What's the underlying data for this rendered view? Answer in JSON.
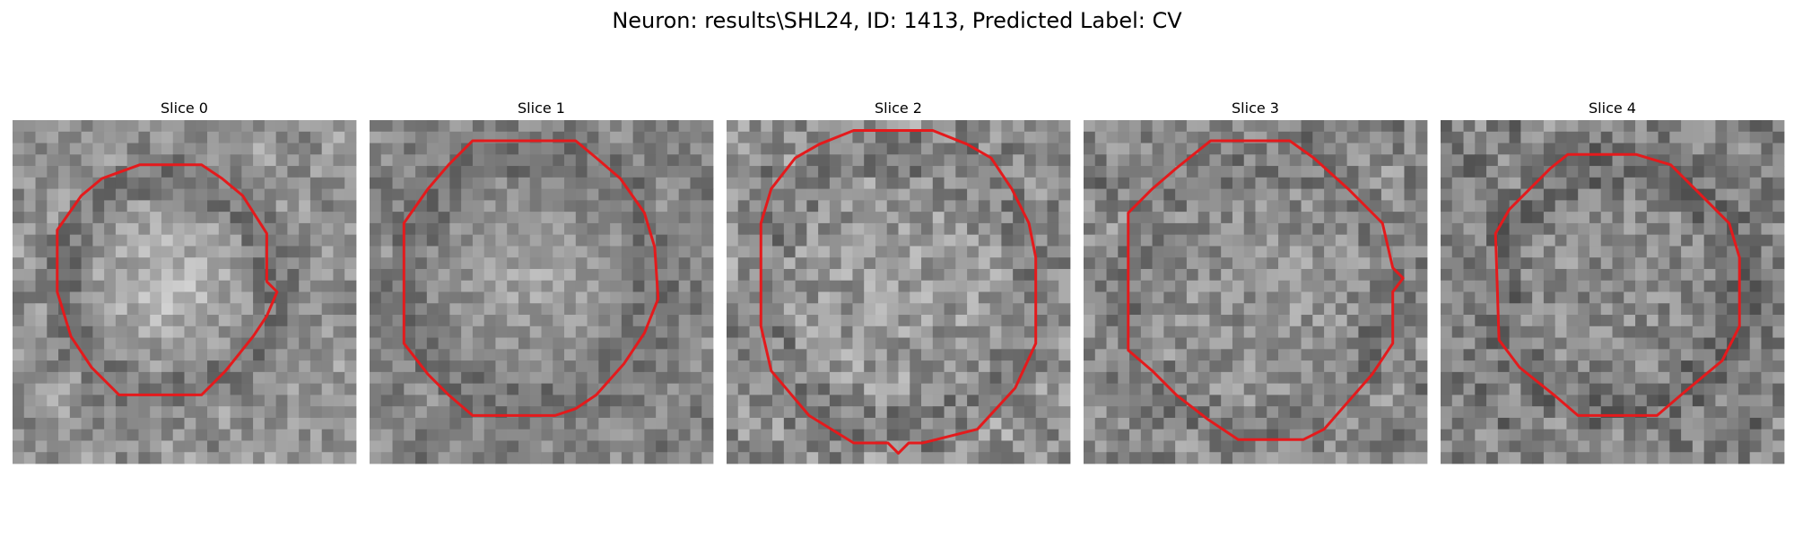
{
  "figure": {
    "title": "Neuron: results\\SHL24, ID: 1413, Predicted Label: CV"
  },
  "slices": [
    {
      "title": "Slice 0",
      "outline_color": "#e41a1c",
      "outline": [
        [
          0.37,
          0.13
        ],
        [
          0.55,
          0.13
        ],
        [
          0.61,
          0.17
        ],
        [
          0.67,
          0.22
        ],
        [
          0.74,
          0.33
        ],
        [
          0.74,
          0.47
        ],
        [
          0.77,
          0.5
        ],
        [
          0.74,
          0.57
        ],
        [
          0.7,
          0.63
        ],
        [
          0.62,
          0.73
        ],
        [
          0.55,
          0.8
        ],
        [
          0.31,
          0.8
        ],
        [
          0.23,
          0.72
        ],
        [
          0.17,
          0.63
        ],
        [
          0.13,
          0.5
        ],
        [
          0.13,
          0.32
        ],
        [
          0.2,
          0.22
        ],
        [
          0.26,
          0.17
        ]
      ]
    },
    {
      "title": "Slice 1",
      "outline_color": "#e41a1c",
      "outline": [
        [
          0.3,
          0.06
        ],
        [
          0.6,
          0.06
        ],
        [
          0.66,
          0.11
        ],
        [
          0.73,
          0.17
        ],
        [
          0.8,
          0.27
        ],
        [
          0.83,
          0.37
        ],
        [
          0.84,
          0.52
        ],
        [
          0.8,
          0.62
        ],
        [
          0.74,
          0.71
        ],
        [
          0.66,
          0.8
        ],
        [
          0.6,
          0.84
        ],
        [
          0.54,
          0.86
        ],
        [
          0.3,
          0.86
        ],
        [
          0.23,
          0.8
        ],
        [
          0.17,
          0.74
        ],
        [
          0.1,
          0.65
        ],
        [
          0.1,
          0.3
        ],
        [
          0.17,
          0.2
        ],
        [
          0.23,
          0.13
        ]
      ]
    },
    {
      "title": "Slice 2",
      "outline_color": "#e41a1c",
      "outline": [
        [
          0.37,
          0.03
        ],
        [
          0.6,
          0.03
        ],
        [
          0.7,
          0.07
        ],
        [
          0.77,
          0.11
        ],
        [
          0.83,
          0.2
        ],
        [
          0.88,
          0.3
        ],
        [
          0.9,
          0.4
        ],
        [
          0.9,
          0.65
        ],
        [
          0.84,
          0.78
        ],
        [
          0.73,
          0.9
        ],
        [
          0.57,
          0.94
        ],
        [
          0.53,
          0.94
        ],
        [
          0.5,
          0.97
        ],
        [
          0.47,
          0.94
        ],
        [
          0.37,
          0.94
        ],
        [
          0.24,
          0.86
        ],
        [
          0.13,
          0.73
        ],
        [
          0.1,
          0.6
        ],
        [
          0.1,
          0.3
        ],
        [
          0.13,
          0.2
        ],
        [
          0.2,
          0.11
        ],
        [
          0.27,
          0.07
        ]
      ]
    },
    {
      "title": "Slice 3",
      "outline_color": "#e41a1c",
      "outline": [
        [
          0.37,
          0.06
        ],
        [
          0.6,
          0.06
        ],
        [
          0.67,
          0.11
        ],
        [
          0.77,
          0.2
        ],
        [
          0.87,
          0.3
        ],
        [
          0.9,
          0.43
        ],
        [
          0.93,
          0.46
        ],
        [
          0.9,
          0.5
        ],
        [
          0.9,
          0.65
        ],
        [
          0.84,
          0.74
        ],
        [
          0.77,
          0.82
        ],
        [
          0.7,
          0.9
        ],
        [
          0.64,
          0.93
        ],
        [
          0.45,
          0.93
        ],
        [
          0.36,
          0.87
        ],
        [
          0.27,
          0.8
        ],
        [
          0.2,
          0.73
        ],
        [
          0.13,
          0.67
        ],
        [
          0.13,
          0.27
        ],
        [
          0.2,
          0.2
        ],
        [
          0.27,
          0.14
        ]
      ]
    },
    {
      "title": "Slice 4",
      "outline_color": "#e41a1c",
      "outline": [
        [
          0.37,
          0.1
        ],
        [
          0.57,
          0.1
        ],
        [
          0.67,
          0.13
        ],
        [
          0.74,
          0.2
        ],
        [
          0.84,
          0.3
        ],
        [
          0.87,
          0.4
        ],
        [
          0.87,
          0.6
        ],
        [
          0.82,
          0.7
        ],
        [
          0.7,
          0.8
        ],
        [
          0.63,
          0.86
        ],
        [
          0.4,
          0.86
        ],
        [
          0.33,
          0.8
        ],
        [
          0.23,
          0.72
        ],
        [
          0.17,
          0.64
        ],
        [
          0.16,
          0.33
        ],
        [
          0.2,
          0.26
        ],
        [
          0.26,
          0.2
        ],
        [
          0.32,
          0.14
        ]
      ]
    }
  ]
}
